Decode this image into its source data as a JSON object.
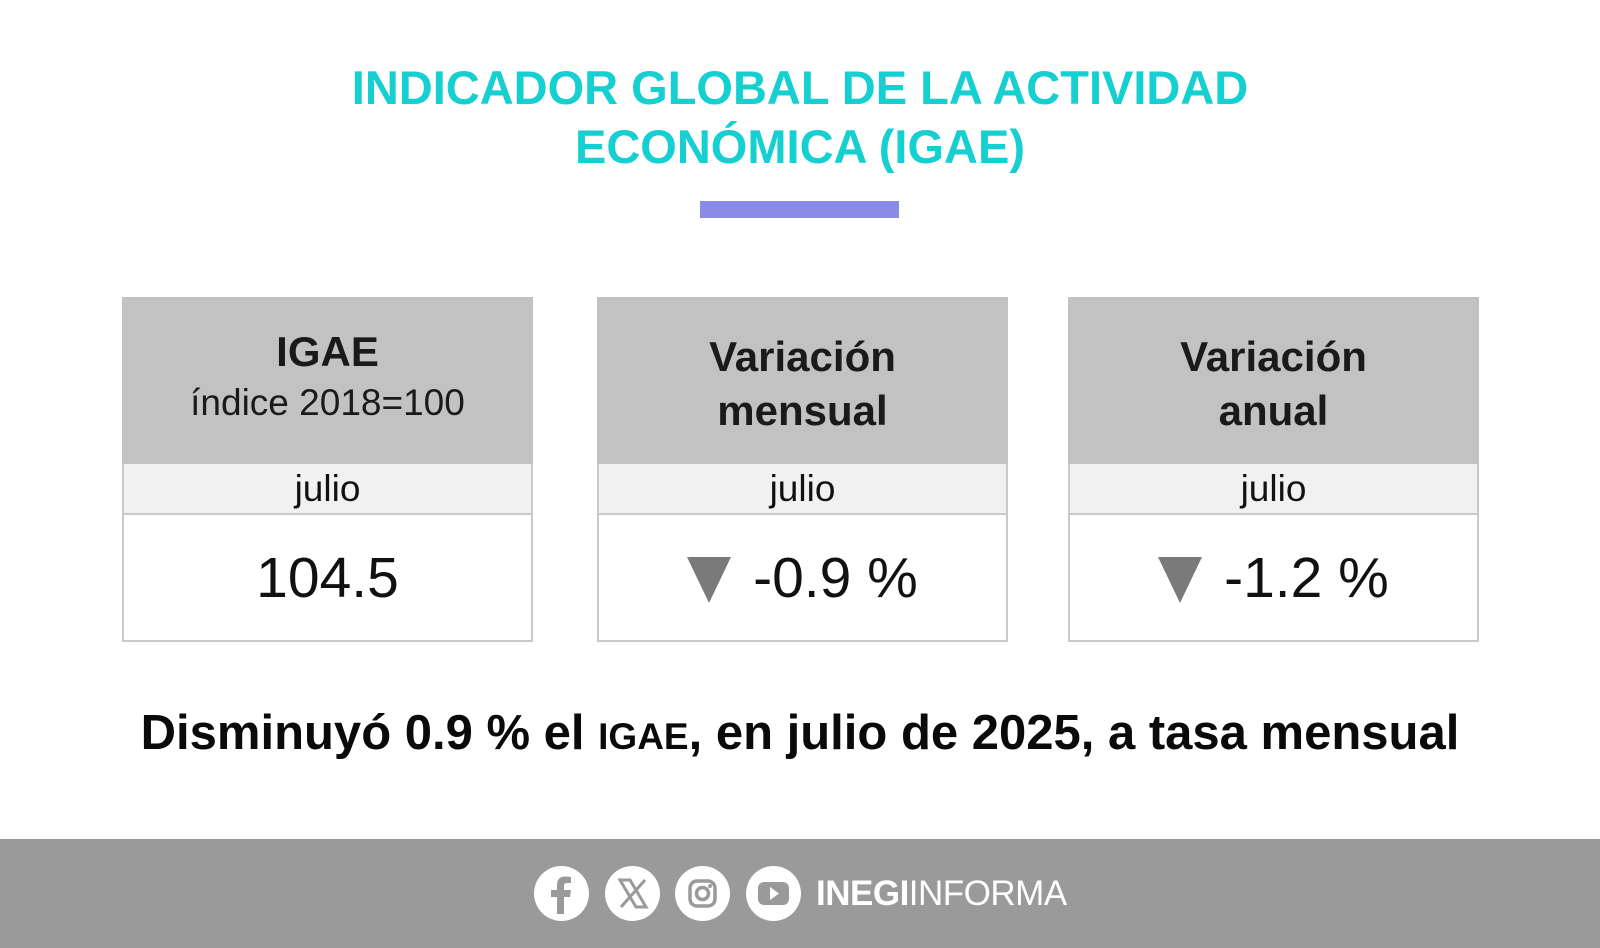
{
  "title": {
    "line1": "INDICADOR GLOBAL DE LA ACTIVIDAD",
    "line2": "ECONÓMICA (IGAE)"
  },
  "cards": [
    {
      "heading_line1": "IGAE",
      "heading_line2": "índice 2018=100",
      "period": "julio",
      "value": "104.5",
      "trend": "none"
    },
    {
      "heading_line1": "Variación",
      "heading_line2": "mensual",
      "period": "julio",
      "value": "-0.9 %",
      "trend": "down"
    },
    {
      "heading_line1": "Variación",
      "heading_line2": "anual",
      "period": "julio",
      "value": "-1.2 %",
      "trend": "down"
    }
  ],
  "headline": {
    "part1": "Disminuyó 0.9 % el ",
    "part2": "IGAE",
    "part3": ", en julio de 2025, a tasa mensual"
  },
  "footer": {
    "icons": [
      "facebook-icon",
      "x-icon",
      "instagram-icon",
      "youtube-icon"
    ],
    "brand_bold": "INEGI",
    "brand_regular": "INFORMA"
  },
  "colors": {
    "title": "#16cfd1",
    "rule": "#8b8ae6",
    "card_header": "#c2c2c2",
    "footer": "#9a9a9a",
    "down_arrow": "#7a7a7a"
  }
}
